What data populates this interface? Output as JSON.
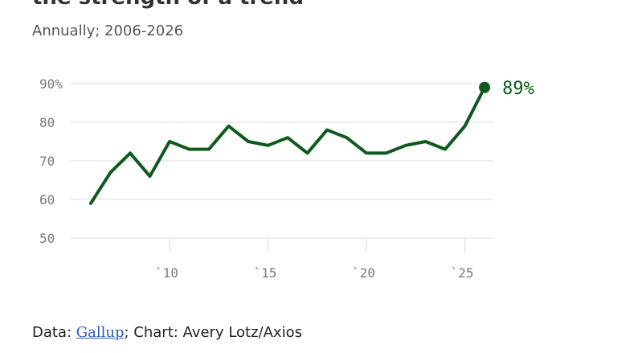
{
  "header": {
    "title_partial": "the strength of a trend",
    "subtitle": "Annually; 2006-2026"
  },
  "source": {
    "prefix": "Data: ",
    "link_text": "Gallup",
    "suffix": "; Chart: Avery Lotz/Axios"
  },
  "colors": {
    "line": "#0e5a1e",
    "grid": "#dddddd",
    "axis_text": "#7a7a7a"
  },
  "chart_data": {
    "type": "line",
    "title": "",
    "subtitle": "Annually; 2006-2026",
    "xlabel": "",
    "ylabel": "",
    "ylim": [
      50,
      90
    ],
    "yticks": [
      50,
      60,
      70,
      80,
      90
    ],
    "ytick_labels": [
      "50",
      "60",
      "70",
      "80",
      "90%"
    ],
    "xticks": [
      2010,
      2015,
      2020,
      2025
    ],
    "xtick_labels": [
      "`10",
      "`15",
      "`20",
      "`25"
    ],
    "grid": true,
    "end_label": "89%",
    "series": [
      {
        "x": [
          2006,
          2007,
          2008,
          2009,
          2010,
          2011,
          2012,
          2013,
          2014,
          2015,
          2016,
          2017,
          2018,
          2019,
          2020,
          2021,
          2022,
          2023,
          2024,
          2025,
          2026
        ],
        "values": [
          59,
          67,
          72,
          66,
          75,
          73,
          73,
          79,
          75,
          74,
          76,
          72,
          78,
          76,
          72,
          72,
          74,
          75,
          73,
          79,
          89
        ]
      }
    ]
  }
}
